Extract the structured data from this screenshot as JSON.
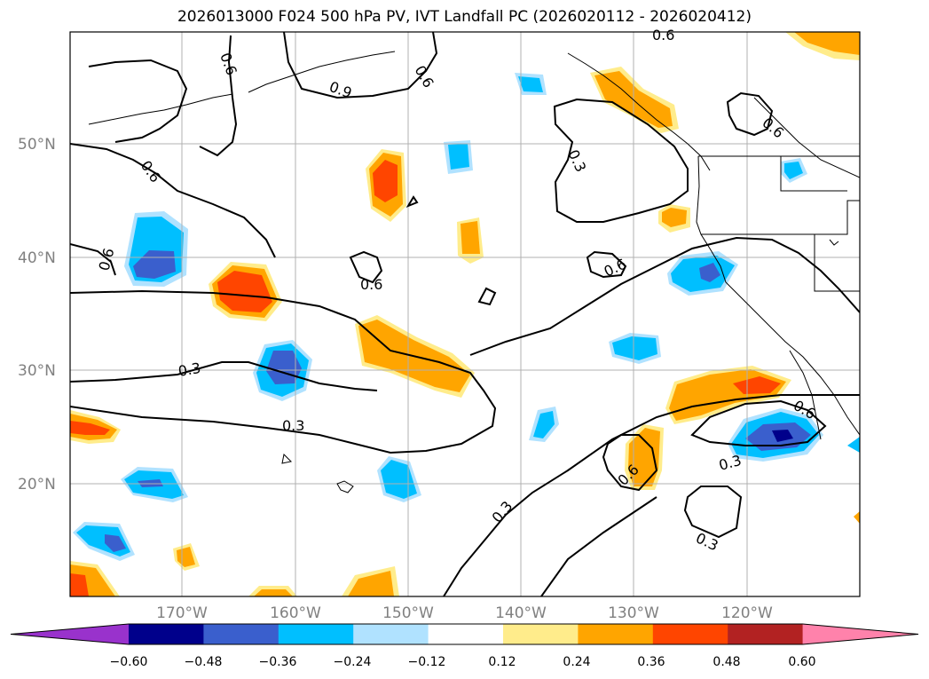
{
  "title": "2026013000 F024 500 hPa PV, IVT Landfall PC (2026020112 - 2026020412)",
  "map": {
    "lat_labels": [
      "50°N",
      "40°N",
      "30°N",
      "20°N"
    ],
    "lon_labels": [
      "170°W",
      "160°W",
      "150°W",
      "140°W",
      "130°W",
      "120°W"
    ],
    "contour_labels": [
      "0.6",
      "0.9",
      "0.6",
      "0.6",
      "0.3",
      "0.6",
      "0.6",
      "0.6",
      "0.6",
      "0.6",
      "0.3",
      "0.3",
      "0.3",
      "0.6",
      "0.3",
      "0.6",
      "0.3",
      "0.6"
    ]
  },
  "colorbar": {
    "ticks": [
      "−0.60",
      "−0.48",
      "−0.36",
      "−0.24",
      "−0.12",
      "0.12",
      "0.24",
      "0.36",
      "0.48",
      "0.60"
    ],
    "colors": [
      "#9932cc",
      "#00008b",
      "#3a5fcd",
      "#00bfff",
      "#b0e2ff",
      "#ffffff",
      "#ffec8b",
      "#ffa500",
      "#ff4500",
      "#b22222",
      "#ff82ab"
    ]
  }
}
